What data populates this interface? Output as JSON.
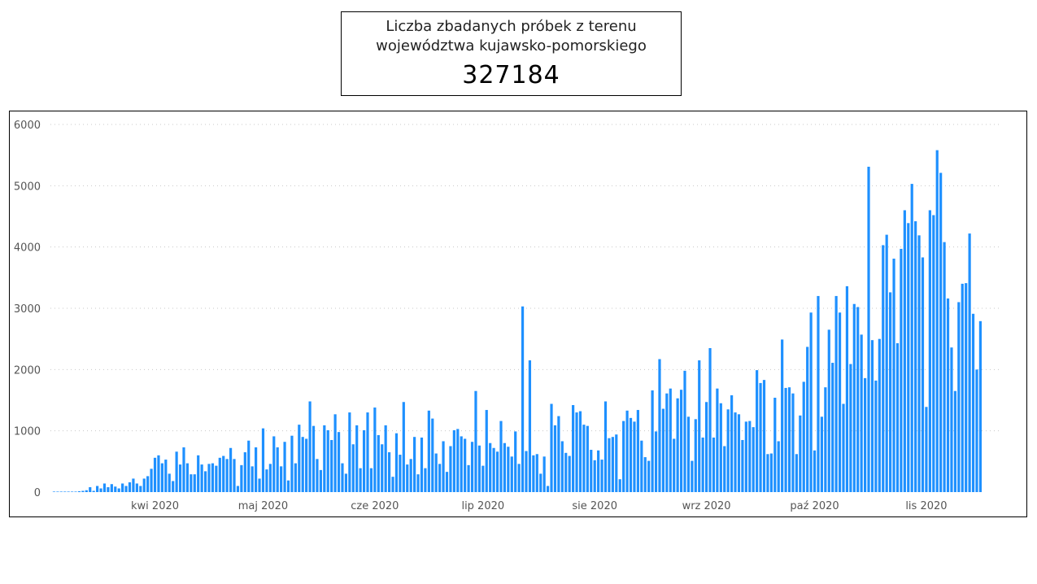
{
  "header": {
    "title_line1": "Liczba zbadanych próbek z terenu",
    "title_line2": "województwa kujawsko-pomorskiego",
    "total": "327184"
  },
  "chart_data": {
    "type": "bar",
    "bar_color": "#1e90ff",
    "ylim": [
      0,
      6000
    ],
    "y_ticks": [
      "0",
      "1000",
      "2000",
      "3000",
      "4000",
      "5000",
      "6000"
    ],
    "grid": "horizontal-dotted",
    "x_range": [
      "2020-03-03",
      "2020-11-22"
    ],
    "x_tick_labels": [
      {
        "date": "2020-04-01",
        "label": "kwi 2020"
      },
      {
        "date": "2020-05-01",
        "label": "maj 2020"
      },
      {
        "date": "2020-06-01",
        "label": "cze 2020"
      },
      {
        "date": "2020-07-01",
        "label": "lip 2020"
      },
      {
        "date": "2020-08-01",
        "label": "sie 2020"
      },
      {
        "date": "2020-09-01",
        "label": "wrz 2020"
      },
      {
        "date": "2020-10-01",
        "label": "paź 2020"
      },
      {
        "date": "2020-11-01",
        "label": "lis 2020"
      }
    ],
    "x_start": "2020-03-04",
    "values": [
      0,
      0,
      0,
      0,
      0,
      0,
      0,
      10,
      20,
      30,
      80,
      20,
      100,
      60,
      140,
      80,
      130,
      90,
      60,
      140,
      100,
      160,
      220,
      140,
      100,
      220,
      260,
      380,
      560,
      600,
      470,
      530,
      300,
      180,
      660,
      450,
      730,
      470,
      290,
      290,
      600,
      450,
      340,
      460,
      470,
      430,
      560,
      590,
      540,
      720,
      540,
      100,
      440,
      650,
      840,
      420,
      730,
      220,
      1040,
      370,
      460,
      910,
      730,
      420,
      820,
      190,
      920,
      470,
      1100,
      900,
      870,
      1480,
      1080,
      540,
      360,
      1090,
      1010,
      850,
      1270,
      980,
      470,
      300,
      1300,
      780,
      1090,
      390,
      1010,
      1300,
      390,
      1380,
      930,
      780,
      1090,
      650,
      250,
      960,
      610,
      1470,
      450,
      540,
      900,
      290,
      890,
      390,
      1330,
      1200,
      630,
      460,
      830,
      330,
      750,
      1010,
      1030,
      910,
      870,
      440,
      820,
      1650,
      760,
      430,
      1340,
      800,
      720,
      660,
      1160,
      800,
      740,
      580,
      990,
      460,
      3030,
      670,
      2150,
      600,
      620,
      300,
      580,
      100,
      1440,
      1090,
      1240,
      830,
      640,
      590,
      1420,
      1300,
      1320,
      1100,
      1080,
      690,
      520,
      680,
      530,
      1480,
      880,
      900,
      940,
      210,
      1160,
      1330,
      1210,
      1150,
      1340,
      840,
      570,
      510,
      1660,
      990,
      2170,
      1360,
      1610,
      1690,
      870,
      1530,
      1670,
      1980,
      1230,
      510,
      1190,
      2150,
      890,
      1470,
      2350,
      890,
      1690,
      1450,
      750,
      1350,
      1580,
      1300,
      1270,
      850,
      1150,
      1160,
      1060,
      1990,
      1780,
      1830,
      620,
      630,
      1540,
      830,
      2490,
      1700,
      1710,
      1610,
      620,
      1250,
      1800,
      2370,
      2930,
      680,
      3200,
      1230,
      1710,
      2650,
      2110,
      3200,
      2930,
      1440,
      3360,
      2090,
      3070,
      3020,
      2570,
      1860,
      5310,
      2480,
      1820,
      2500,
      4030,
      4200,
      3260,
      3810,
      2430,
      3970,
      4600,
      4390,
      5030,
      4420,
      4190,
      3830,
      1390,
      4600,
      4520,
      5580,
      5210,
      4080,
      3160,
      2360,
      1650,
      3100,
      3400,
      3410,
      4220,
      2910,
      2000,
      2790
    ]
  }
}
